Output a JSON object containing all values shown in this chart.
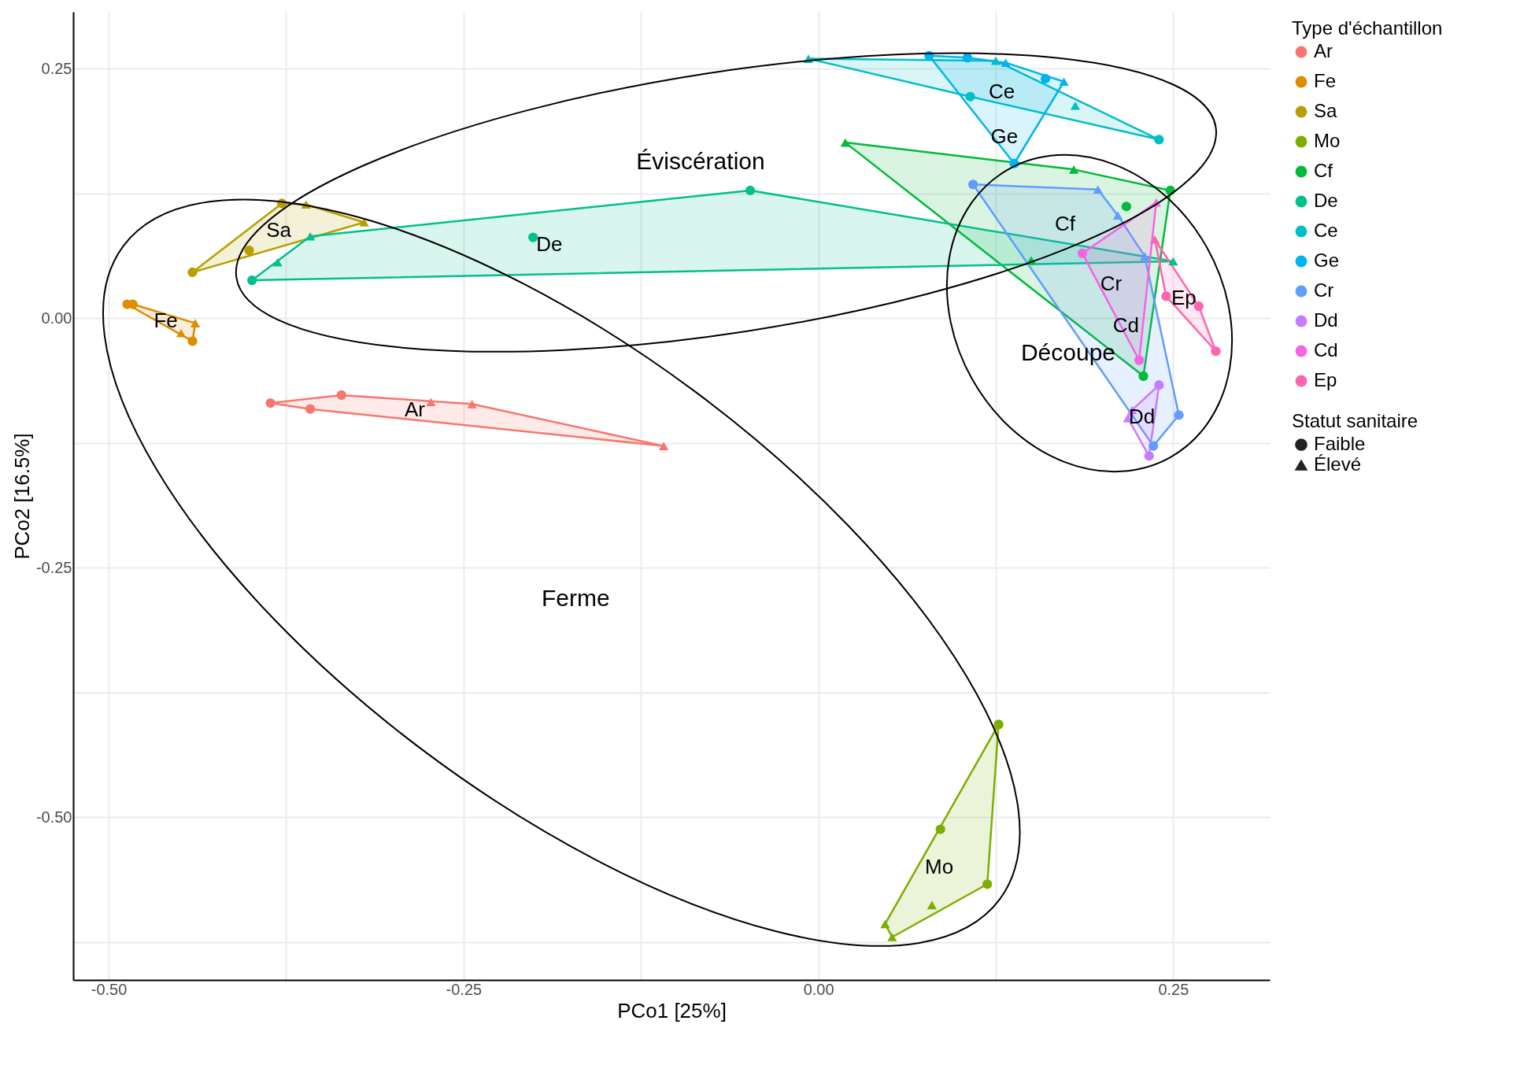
{
  "chart_data": {
    "type": "scatter",
    "xlabel": "PCo1 [25%]",
    "ylabel": "PCo2 [16.5%]",
    "legend_title": "Type d'échantillon",
    "legend": "right",
    "grid": true,
    "xlim": [
      -0.525,
      0.318
    ],
    "ylim": [
      -0.663,
      0.307
    ],
    "xticks": [
      {
        "value": -0.5,
        "label": "-0.50"
      },
      {
        "value": -0.375,
        "label": null
      },
      {
        "value": -0.25,
        "label": "-0.25"
      },
      {
        "value": -0.125,
        "label": null
      },
      {
        "value": 0,
        "label": "0.00"
      },
      {
        "value": 0.125,
        "label": null
      },
      {
        "value": 0.25,
        "label": "0.25"
      }
    ],
    "yticks": [
      {
        "value": -0.625,
        "label": null
      },
      {
        "value": -0.5,
        "label": "-0.50"
      },
      {
        "value": -0.375,
        "label": null
      },
      {
        "value": -0.25,
        "label": "-0.25"
      },
      {
        "value": -0.125,
        "label": null
      },
      {
        "value": 0,
        "label": "0.00"
      },
      {
        "value": 0.125,
        "label": null
      },
      {
        "value": 0.25,
        "label": "0.25"
      }
    ],
    "annotations": [
      "Statut sanitaire",
      "Faible",
      "Élevé",
      "Éviscération",
      "Ferme",
      "Découpe"
    ],
    "series": [
      {
        "name": "Ar",
        "color": "#f8766d",
        "x": [
          -0.386,
          -0.358,
          -0.336,
          -0.273,
          -0.244,
          -0.109
        ],
        "values": [
          -0.085,
          -0.091,
          -0.077,
          -0.084,
          -0.086,
          -0.128
        ],
        "marker": [
          "circle",
          "circle",
          "circle",
          "triangle",
          "triangle",
          "triangle"
        ]
      },
      {
        "name": "Fe",
        "color": "#de8c00",
        "x": [
          -0.487,
          -0.483,
          -0.439,
          -0.449,
          -0.441
        ],
        "values": [
          0.014,
          0.014,
          -0.005,
          -0.015,
          -0.023
        ],
        "marker": [
          "circle",
          "circle",
          "triangle",
          "triangle",
          "circle"
        ]
      },
      {
        "name": "Sa",
        "color": "#b79f00",
        "x": [
          -0.378,
          -0.361,
          -0.32,
          -0.401,
          -0.441
        ],
        "values": [
          0.115,
          0.114,
          0.096,
          0.068,
          0.046
        ],
        "marker": [
          "circle",
          "triangle",
          "triangle",
          "circle",
          "circle"
        ]
      },
      {
        "name": "Mo",
        "color": "#7cae00",
        "x": [
          0.127,
          0.086,
          0.119,
          0.08,
          0.047,
          0.052
        ],
        "values": [
          -0.407,
          -0.512,
          -0.567,
          -0.588,
          -0.607,
          -0.62
        ],
        "marker": [
          "circle",
          "circle",
          "circle",
          "triangle",
          "triangle",
          "triangle"
        ]
      },
      {
        "name": "Cf",
        "color": "#00ba38",
        "x": [
          0.019,
          0.18,
          0.248,
          0.217,
          0.15,
          0.229
        ],
        "values": [
          0.176,
          0.149,
          0.128,
          0.112,
          0.058,
          -0.058
        ],
        "marker": [
          "triangle",
          "triangle",
          "circle",
          "circle",
          "triangle",
          "circle"
        ]
      },
      {
        "name": "De",
        "color": "#00c08b",
        "x": [
          -0.399,
          -0.381,
          -0.358,
          -0.201,
          -0.048,
          0.25
        ],
        "values": [
          0.038,
          0.056,
          0.082,
          0.081,
          0.128,
          0.057
        ],
        "marker": [
          "circle",
          "triangle",
          "triangle",
          "circle",
          "circle",
          "triangle"
        ]
      },
      {
        "name": "Ce",
        "color": "#00bfc4",
        "x": [
          -0.007,
          0.125,
          0.181,
          0.24,
          0.107
        ],
        "values": [
          0.26,
          0.258,
          0.213,
          0.179,
          0.222
        ],
        "marker": [
          "triangle",
          "triangle",
          "triangle",
          "circle",
          "circle"
        ]
      },
      {
        "name": "Ge",
        "color": "#00b4f0",
        "x": [
          0.078,
          0.105,
          0.132,
          0.16,
          0.173,
          0.138
        ],
        "values": [
          0.263,
          0.261,
          0.256,
          0.24,
          0.237,
          0.155
        ],
        "marker": [
          "circle",
          "circle",
          "triangle",
          "circle",
          "triangle",
          "circle"
        ]
      },
      {
        "name": "Cr",
        "color": "#619cff",
        "x": [
          0.109,
          0.197,
          0.211,
          0.23,
          0.254,
          0.236
        ],
        "values": [
          0.134,
          0.129,
          0.103,
          0.062,
          -0.097,
          -0.128
        ],
        "marker": [
          "circle",
          "triangle",
          "triangle",
          "triangle",
          "circle",
          "circle"
        ]
      },
      {
        "name": "Dd",
        "color": "#c77cff",
        "x": [
          0.24,
          0.221,
          0.218,
          0.233
        ],
        "values": [
          -0.067,
          -0.092,
          -0.1,
          -0.138
        ],
        "marker": [
          "circle",
          "triangle",
          "triangle",
          "circle"
        ]
      },
      {
        "name": "Cd",
        "color": "#f564e3",
        "x": [
          0.186,
          0.238,
          0.226
        ],
        "values": [
          0.065,
          0.116,
          -0.042
        ],
        "marker": [
          "circle",
          "triangle",
          "circle"
        ]
      },
      {
        "name": "Ep",
        "color": "#ff64b0",
        "x": [
          0.237,
          0.245,
          0.268,
          0.28
        ],
        "values": [
          0.079,
          0.022,
          0.012,
          -0.033
        ],
        "marker": [
          "triangle",
          "circle",
          "circle",
          "circle"
        ]
      }
    ]
  }
}
